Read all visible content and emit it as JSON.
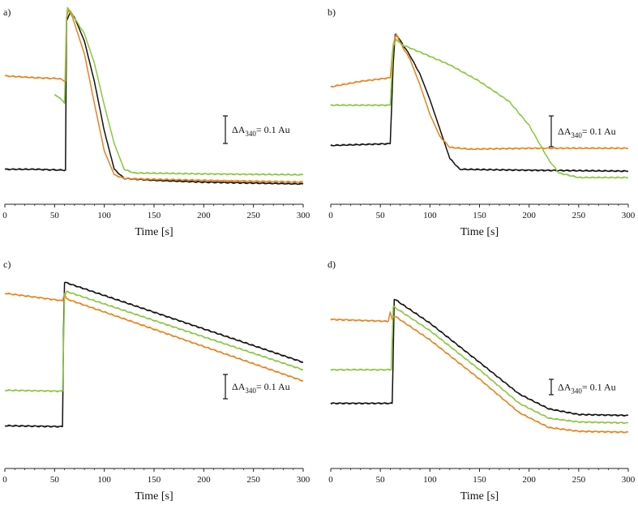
{
  "chart_data": [
    {
      "type": "line",
      "panel_label": "a)",
      "xlabel": "Time [s]",
      "xlim": [
        0,
        300
      ],
      "ylim": [
        0,
        1
      ],
      "xticks": [
        0,
        50,
        100,
        150,
        200,
        250,
        300
      ],
      "xtick_labels": [
        "0",
        "50",
        "100",
        "150",
        "200",
        "250",
        "300"
      ],
      "scale_bar": {
        "prefix": "ΔA",
        "sub": "340",
        "suffix": "= 0.1 Au"
      },
      "series": [
        {
          "name": "black",
          "color": "#111111",
          "points": [
            [
              0,
              0.12
            ],
            [
              30,
              0.12
            ],
            [
              61,
              0.115
            ],
            [
              62,
              0.93
            ],
            [
              66,
              0.98
            ],
            [
              70,
              0.95
            ],
            [
              80,
              0.82
            ],
            [
              90,
              0.6
            ],
            [
              100,
              0.33
            ],
            [
              110,
              0.12
            ],
            [
              120,
              0.07
            ],
            [
              150,
              0.06
            ],
            [
              200,
              0.05
            ],
            [
              250,
              0.045
            ],
            [
              300,
              0.04
            ]
          ]
        },
        {
          "name": "orange",
          "color": "#E8821A",
          "points": [
            [
              0,
              0.63
            ],
            [
              30,
              0.62
            ],
            [
              55,
              0.615
            ],
            [
              61,
              0.6
            ],
            [
              62,
              0.95
            ],
            [
              64,
              0.99
            ],
            [
              68,
              0.95
            ],
            [
              80,
              0.75
            ],
            [
              90,
              0.48
            ],
            [
              100,
              0.22
            ],
            [
              110,
              0.09
            ],
            [
              120,
              0.07
            ],
            [
              150,
              0.065
            ],
            [
              200,
              0.06
            ],
            [
              250,
              0.055
            ],
            [
              300,
              0.05
            ]
          ]
        },
        {
          "name": "green",
          "color": "#8CC63F",
          "points": [
            [
              50,
              0.53
            ],
            [
              55,
              0.51
            ],
            [
              60,
              0.48
            ],
            [
              62,
              0.95
            ],
            [
              63,
              1.0
            ],
            [
              66,
              0.98
            ],
            [
              80,
              0.86
            ],
            [
              90,
              0.7
            ],
            [
              100,
              0.47
            ],
            [
              110,
              0.26
            ],
            [
              120,
              0.12
            ],
            [
              130,
              0.1
            ],
            [
              200,
              0.095
            ],
            [
              300,
              0.09
            ]
          ]
        }
      ]
    },
    {
      "type": "line",
      "panel_label": "b)",
      "xlabel": "Time [s]",
      "xlim": [
        0,
        300
      ],
      "ylim": [
        0,
        1
      ],
      "xticks": [
        0,
        50,
        100,
        150,
        200,
        250,
        300
      ],
      "xtick_labels": [
        "0",
        "50",
        "100",
        "150",
        "200",
        "250",
        "300"
      ],
      "scale_bar": {
        "prefix": "ΔA",
        "sub": "340",
        "suffix": "= 0.1 Au"
      },
      "series": [
        {
          "name": "black",
          "color": "#111111",
          "points": [
            [
              0,
              0.25
            ],
            [
              60,
              0.26
            ],
            [
              63,
              0.7
            ],
            [
              65,
              0.86
            ],
            [
              68,
              0.84
            ],
            [
              80,
              0.74
            ],
            [
              90,
              0.64
            ],
            [
              100,
              0.5
            ],
            [
              110,
              0.34
            ],
            [
              120,
              0.18
            ],
            [
              130,
              0.12
            ],
            [
              200,
              0.115
            ],
            [
              300,
              0.11
            ]
          ]
        },
        {
          "name": "orange",
          "color": "#E8821A",
          "points": [
            [
              0,
              0.57
            ],
            [
              30,
              0.6
            ],
            [
              60,
              0.62
            ],
            [
              63,
              0.8
            ],
            [
              66,
              0.86
            ],
            [
              70,
              0.81
            ],
            [
              80,
              0.72
            ],
            [
              90,
              0.58
            ],
            [
              100,
              0.42
            ],
            [
              110,
              0.3
            ],
            [
              120,
              0.24
            ],
            [
              140,
              0.23
            ],
            [
              200,
              0.235
            ],
            [
              300,
              0.235
            ]
          ]
        },
        {
          "name": "green",
          "color": "#8CC63F",
          "points": [
            [
              0,
              0.47
            ],
            [
              30,
              0.47
            ],
            [
              60,
              0.47
            ],
            [
              63,
              0.79
            ],
            [
              66,
              0.83
            ],
            [
              72,
              0.8
            ],
            [
              90,
              0.76
            ],
            [
              120,
              0.69
            ],
            [
              150,
              0.6
            ],
            [
              180,
              0.49
            ],
            [
              200,
              0.36
            ],
            [
              220,
              0.17
            ],
            [
              230,
              0.1
            ],
            [
              250,
              0.075
            ],
            [
              300,
              0.075
            ]
          ]
        }
      ]
    },
    {
      "type": "line",
      "panel_label": "c)",
      "xlabel": "Time [s]",
      "xlim": [
        0,
        300
      ],
      "ylim": [
        0,
        1
      ],
      "xticks": [
        0,
        50,
        100,
        150,
        200,
        250,
        300
      ],
      "xtick_labels": [
        "0",
        "50",
        "100",
        "150",
        "200",
        "250",
        "300"
      ],
      "scale_bar": {
        "prefix": "ΔA",
        "sub": "340",
        "suffix": "= 0.1 Au"
      },
      "series": [
        {
          "name": "black",
          "color": "#111111",
          "points": [
            [
              0,
              0.16
            ],
            [
              58,
              0.155
            ],
            [
              59,
              0.68
            ],
            [
              60,
              0.93
            ],
            [
              300,
              0.5
            ]
          ]
        },
        {
          "name": "orange",
          "color": "#E8821A",
          "points": [
            [
              0,
              0.87
            ],
            [
              30,
              0.85
            ],
            [
              58,
              0.83
            ],
            [
              60,
              0.87
            ],
            [
              62,
              0.84
            ],
            [
              300,
              0.4
            ]
          ]
        },
        {
          "name": "green",
          "color": "#8CC63F",
          "points": [
            [
              0,
              0.35
            ],
            [
              58,
              0.345
            ],
            [
              60,
              0.85
            ],
            [
              62,
              0.88
            ],
            [
              300,
              0.46
            ]
          ]
        }
      ]
    },
    {
      "type": "line",
      "panel_label": "d)",
      "xlabel": "Time [s]",
      "xlim": [
        0,
        300
      ],
      "ylim": [
        0,
        1
      ],
      "xticks": [
        0,
        50,
        100,
        150,
        200,
        250,
        300
      ],
      "xtick_labels": [
        "0",
        "50",
        "100",
        "150",
        "200",
        "250",
        "300"
      ],
      "scale_bar": {
        "prefix": "ΔA",
        "sub": "340",
        "suffix": "= 0.1 Au"
      },
      "series": [
        {
          "name": "black",
          "color": "#111111",
          "points": [
            [
              0,
              0.28
            ],
            [
              62,
              0.28
            ],
            [
              64,
              0.84
            ],
            [
              100,
              0.71
            ],
            [
              150,
              0.5
            ],
            [
              190,
              0.33
            ],
            [
              220,
              0.25
            ],
            [
              250,
              0.22
            ],
            [
              300,
              0.215
            ]
          ]
        },
        {
          "name": "orange",
          "color": "#E8821A",
          "points": [
            [
              0,
              0.73
            ],
            [
              58,
              0.72
            ],
            [
              60,
              0.77
            ],
            [
              62,
              0.73
            ],
            [
              64,
              0.75
            ],
            [
              100,
              0.62
            ],
            [
              150,
              0.41
            ],
            [
              190,
              0.23
            ],
            [
              220,
              0.15
            ],
            [
              250,
              0.13
            ],
            [
              300,
              0.125
            ]
          ]
        },
        {
          "name": "green",
          "color": "#8CC63F",
          "points": [
            [
              0,
              0.46
            ],
            [
              61,
              0.46
            ],
            [
              63,
              0.8
            ],
            [
              100,
              0.67
            ],
            [
              150,
              0.46
            ],
            [
              190,
              0.28
            ],
            [
              220,
              0.2
            ],
            [
              250,
              0.18
            ],
            [
              300,
              0.175
            ]
          ]
        }
      ]
    }
  ]
}
